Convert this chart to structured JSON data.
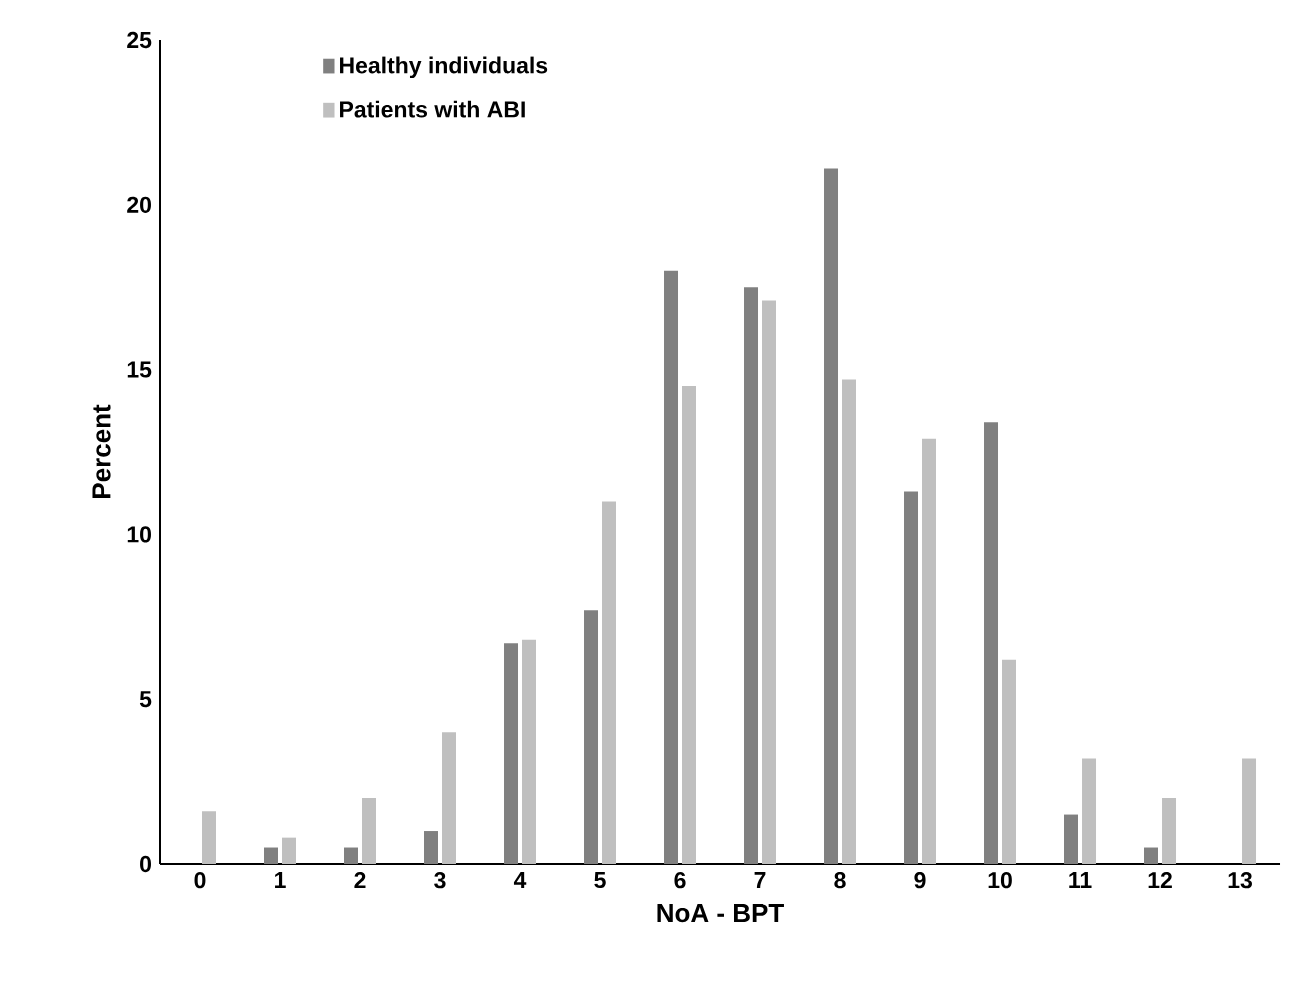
{
  "chart_data": {
    "type": "bar",
    "xlabel": "NoA - BPT",
    "ylabel": "Percent",
    "categories": [
      "0",
      "1",
      "2",
      "3",
      "4",
      "5",
      "6",
      "7",
      "8",
      "9",
      "10",
      "11",
      "12",
      "13"
    ],
    "series": [
      {
        "name": "Healthy individuals",
        "color": "#808080",
        "values": [
          0,
          0.5,
          0.5,
          1.0,
          6.7,
          7.7,
          18.0,
          17.5,
          21.1,
          11.3,
          13.4,
          1.5,
          0.5,
          0
        ]
      },
      {
        "name": "Patients with ABI",
        "color": "#bfbfbf",
        "values": [
          1.6,
          0.8,
          2.0,
          4.0,
          6.8,
          11.0,
          14.5,
          17.1,
          14.7,
          12.9,
          6.2,
          3.2,
          2.0,
          3.2
        ]
      }
    ],
    "ylim": [
      0,
      25
    ],
    "yticks": [
      0,
      5,
      10,
      15,
      20,
      25
    ],
    "grid": false,
    "legend": "top left"
  }
}
